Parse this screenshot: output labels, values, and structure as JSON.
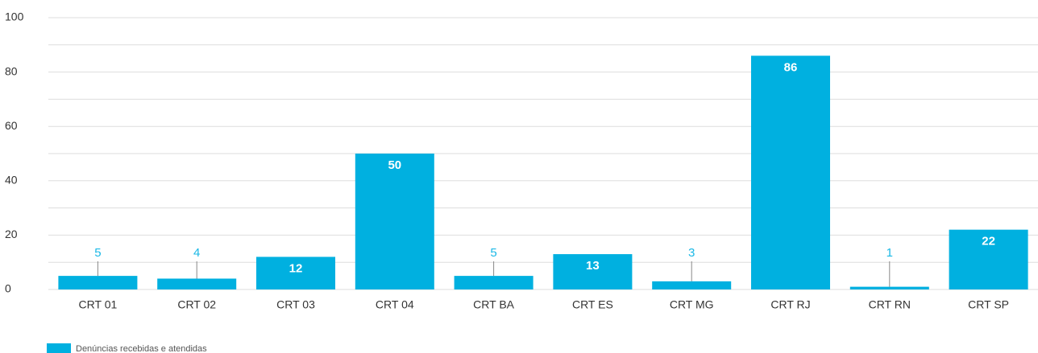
{
  "chart_data": {
    "type": "bar",
    "categories": [
      "CRT 01",
      "CRT 02",
      "CRT 03",
      "CRT 04",
      "CRT BA",
      "CRT ES",
      "CRT MG",
      "CRT RJ",
      "CRT RN",
      "CRT SP"
    ],
    "series": [
      {
        "name": "Denúncias recebidas e atendidas",
        "color": "#00b0e0",
        "values": [
          5,
          4,
          12,
          50,
          5,
          13,
          3,
          86,
          1,
          22
        ]
      }
    ],
    "ylim": [
      0,
      100
    ],
    "yticks": [
      0,
      20,
      40,
      60,
      80,
      100
    ],
    "minor_yticks": [
      10,
      30,
      50,
      70,
      90
    ],
    "grid": true,
    "legend": "bottom-left"
  }
}
